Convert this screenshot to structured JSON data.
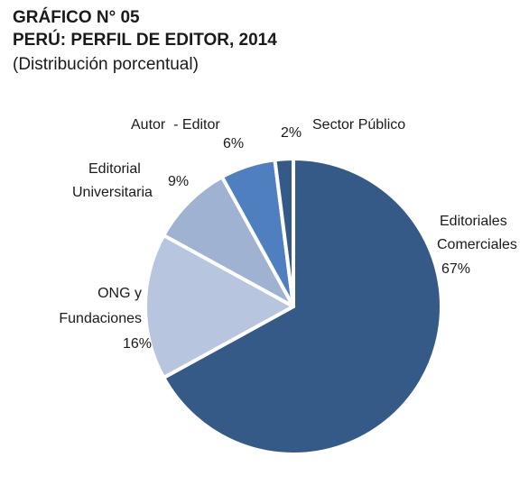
{
  "header": {
    "line1": "GRÁFICO N° 05",
    "line2": "PERÚ: PERFIL DE EDITOR, 2014",
    "subtitle": "(Distribución porcentual)"
  },
  "chart_data": {
    "type": "pie",
    "title": "PERÚ: PERFIL DE EDITOR, 2014",
    "subtitle": "(Distribución porcentual)",
    "unit": "%",
    "slices": [
      {
        "name": "Editoriales Comerciales",
        "label_lines": [
          "Editoriales",
          "Comerciales"
        ],
        "value": 67,
        "value_label": "67%",
        "color": "#365a87"
      },
      {
        "name": "ONG y Fundaciones",
        "label_lines": [
          "ONG y",
          "Fundaciones"
        ],
        "value": 16,
        "value_label": "16%",
        "color": "#b7c5df"
      },
      {
        "name": "Editorial Universitaria",
        "label_lines": [
          "Editorial",
          "Universitaria"
        ],
        "value": 9,
        "value_label": "9%",
        "color": "#9fb2d1"
      },
      {
        "name": "Autor - Editor",
        "label_lines": [
          "Autor  - Editor"
        ],
        "value": 6,
        "value_label": "6%",
        "color": "#4f7fbe"
      },
      {
        "name": "Sector Público",
        "label_lines": [
          "Sector Público"
        ],
        "value": 2,
        "value_label": "2%",
        "color": "#365a87"
      }
    ],
    "legend": "none"
  }
}
